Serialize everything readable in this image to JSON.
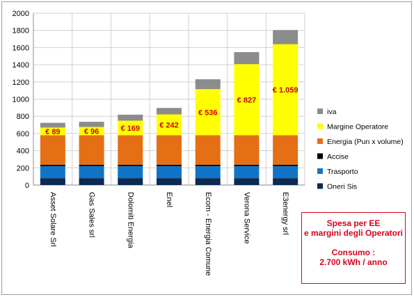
{
  "chart_data": {
    "type": "bar",
    "stacked": true,
    "categories": [
      "Asset Solare Srl",
      "Gas Sales srl",
      "Dolomiti Energia",
      "Enel",
      "Ecom - Energia Comune",
      "Verona Service",
      "E3energy srl"
    ],
    "ylim": [
      0,
      2000
    ],
    "y_ticks": [
      0,
      200,
      400,
      600,
      800,
      1000,
      1200,
      1400,
      1600,
      1800,
      2000
    ],
    "grid": true,
    "legend_position": "right",
    "series": [
      {
        "name": "Oneri Sis",
        "color": "#0b2a52",
        "values": [
          80,
          80,
          80,
          80,
          80,
          80,
          80
        ]
      },
      {
        "name": "Trasporto",
        "color": "#0f74c8",
        "values": [
          140,
          140,
          140,
          140,
          140,
          140,
          140
        ]
      },
      {
        "name": "Accise",
        "color": "#000000",
        "values": [
          15,
          15,
          15,
          15,
          15,
          15,
          15
        ]
      },
      {
        "name": "Energia (Pun x volume)",
        "color": "#e46f15",
        "values": [
          345,
          345,
          345,
          345,
          345,
          345,
          345
        ]
      },
      {
        "name": "Margine Operatore",
        "color": "#ffff00",
        "values": [
          89,
          96,
          169,
          242,
          536,
          827,
          1059
        ]
      },
      {
        "name": "iva",
        "color": "#8c8c8c",
        "values": [
          55,
          60,
          70,
          75,
          115,
          140,
          165
        ]
      }
    ],
    "margin_labels": [
      "€ 89",
      "€ 96",
      "€ 169",
      "€ 242",
      "€ 536",
      "€ 827",
      "€ 1.059"
    ]
  },
  "note": {
    "title_line1": "Spesa  per EE",
    "title_line2": "e margini  degli Operatori",
    "consumo_line1": "Consumo :",
    "consumo_line2": "2.700 kWh / anno"
  },
  "colors": {
    "label_red": "#cc0000",
    "note_red": "#d9001b",
    "grid": "#d0d0d0"
  }
}
